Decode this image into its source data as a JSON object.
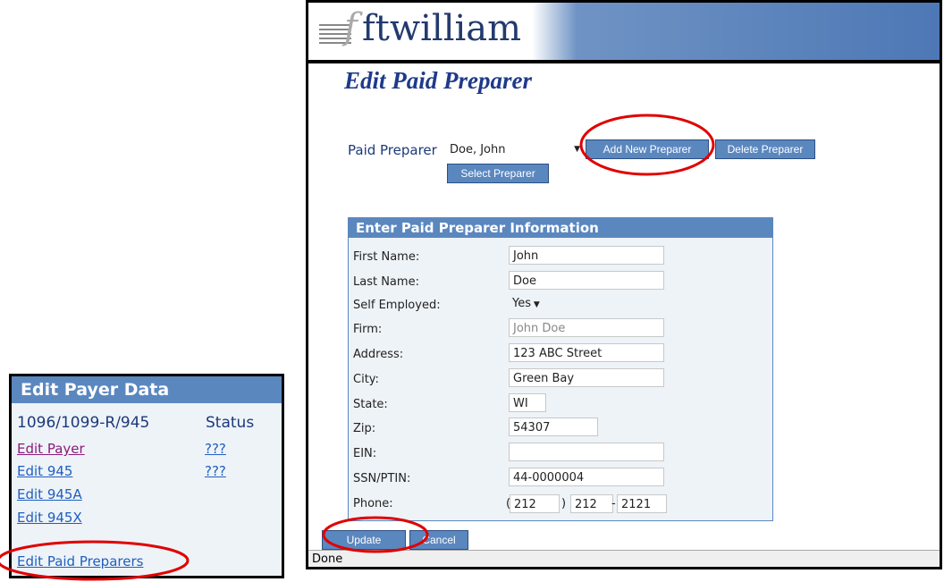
{
  "left_panel": {
    "title": "Edit Payer Data",
    "col1": "1096/1099-R/945",
    "col2": "Status",
    "links": [
      "Edit Payer",
      "Edit 945",
      "Edit 945A",
      "Edit 945X",
      "Edit Paid Preparers"
    ],
    "statuses": [
      "???",
      "???"
    ]
  },
  "window": {
    "logo": "ftwilliam",
    "page_title": "Edit Paid Preparer",
    "preparer_label": "Paid Preparer",
    "preparer_value": "Doe, John",
    "add_label": "Add New Preparer",
    "delete_label": "Delete Preparer",
    "select_label": "Select Preparer",
    "form": {
      "title": "Enter Paid Preparer Information",
      "fields": [
        {
          "label": "First Name:",
          "value": "John"
        },
        {
          "label": "Last Name:",
          "value": "Doe"
        },
        {
          "label": "Self Employed:",
          "value": "Yes"
        },
        {
          "label": "Firm:",
          "value": "John Doe"
        },
        {
          "label": "Address:",
          "value": "123 ABC Street"
        },
        {
          "label": "City:",
          "value": "Green Bay"
        },
        {
          "label": "State:",
          "value": "WI"
        },
        {
          "label": "Zip:",
          "value": "54307"
        },
        {
          "label": "EIN:",
          "value": ""
        },
        {
          "label": "SSN/PTIN:",
          "value": "44-0000004"
        },
        {
          "label": "Phone:",
          "area": "212",
          "prefix": "212",
          "line": "2121"
        }
      ]
    },
    "update_label": "Update",
    "cancel_label": "Cancel",
    "status": "Done"
  },
  "colors": {
    "accent": "#5b87bf",
    "annotation": "#e00000"
  }
}
